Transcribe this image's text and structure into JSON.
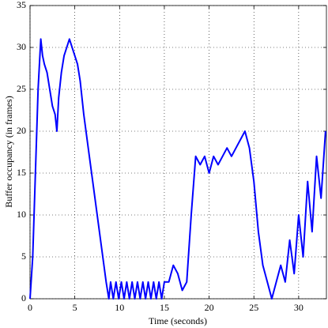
{
  "chart_data": {
    "type": "line",
    "xlabel": "Time (seconds)",
    "ylabel": "Buffer occupancy (in frames)",
    "color": "#0000ff",
    "grid": true,
    "xlim": [
      0,
      33.1
    ],
    "xticks": [
      0,
      5,
      10,
      15,
      20,
      25,
      30
    ],
    "ylim": [
      0,
      35
    ],
    "yticks": [
      0,
      5,
      10,
      15,
      20,
      25,
      30,
      35
    ],
    "x": [
      0,
      0.3,
      0.6,
      0.9,
      1.2,
      1.4,
      1.6,
      1.9,
      2.2,
      2.5,
      2.8,
      3.0,
      3.2,
      3.5,
      3.8,
      4.1,
      4.4,
      4.7,
      5.0,
      5.3,
      5.6,
      6.0,
      6.5,
      7.0,
      7.5,
      8.0,
      8.5,
      8.8,
      9.0,
      9.3,
      9.6,
      9.9,
      10.2,
      10.5,
      10.8,
      11.1,
      11.4,
      11.7,
      12.0,
      12.3,
      12.6,
      12.9,
      13.2,
      13.5,
      13.8,
      14.1,
      14.4,
      14.7,
      15.0,
      15.5,
      16.0,
      16.5,
      17.0,
      17.5,
      18.0,
      18.5,
      19.0,
      19.5,
      20.0,
      20.5,
      21.0,
      21.5,
      22.0,
      22.5,
      23.0,
      23.5,
      24.0,
      24.5,
      25.0,
      25.5,
      26.0,
      26.5,
      27.0,
      27.5,
      28.0,
      28.5,
      29.0,
      29.5,
      30.0,
      30.5,
      31.0,
      31.5,
      32.0,
      32.5,
      33.0
    ],
    "values": [
      0,
      5,
      15,
      25,
      31,
      29,
      28,
      27,
      25,
      23,
      22,
      20,
      24,
      27,
      29,
      30,
      31,
      30,
      29,
      28,
      26,
      22,
      18,
      14,
      10,
      6,
      2,
      0,
      2,
      0,
      2,
      0,
      2,
      0,
      2,
      0,
      2,
      0,
      2,
      0,
      2,
      0,
      2,
      0,
      2,
      0,
      2,
      0,
      2,
      2,
      4,
      3,
      1,
      2,
      10,
      17,
      16,
      17,
      15,
      17,
      16,
      17,
      18,
      17,
      18,
      19,
      20,
      18,
      14,
      8,
      4,
      2,
      0,
      2,
      4,
      2,
      7,
      3,
      10,
      5,
      14,
      8,
      17,
      12,
      20
    ]
  }
}
